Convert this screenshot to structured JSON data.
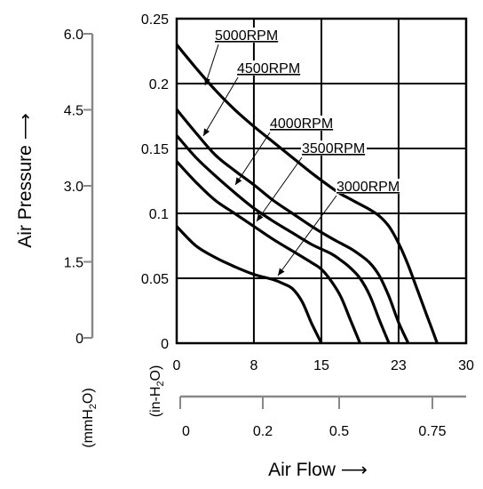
{
  "chart_data": {
    "type": "line",
    "title": "",
    "xlabel": "Air Flow ⟶",
    "ylabel": "Air Pressure ⟶",
    "xunit_primary": "(in-H2O)",
    "yunit_secondary": "(mmH2O)",
    "xlim": [
      0,
      30
    ],
    "ylim": [
      0,
      0.25
    ],
    "x_ticks": [
      0,
      8,
      15,
      23,
      30
    ],
    "y_ticks": [
      0,
      0.05,
      0.1,
      0.15,
      0.2,
      0.25
    ],
    "y_tick_labels": [
      "0",
      "0.05",
      "0.1",
      "0.15",
      "0.2",
      "0.25"
    ],
    "y2_ticks": [
      0,
      1.5,
      3.0,
      4.5,
      6.0
    ],
    "y2_tick_labels": [
      "0",
      "1.5",
      "3.0",
      "4.5",
      "6.0"
    ],
    "x2_ticks": [
      0,
      0.2,
      0.5,
      0.75
    ],
    "x2_tick_labels": [
      "0",
      "0.2",
      "0.5",
      "0.75"
    ],
    "grid": true,
    "series": [
      {
        "name": "5000RPM",
        "x": [
          0,
          2,
          4,
          6,
          8,
          10,
          12,
          14,
          16,
          17,
          18,
          19,
          20,
          21,
          22,
          23,
          24,
          25,
          26,
          27
        ],
        "y": [
          0.23,
          0.212,
          0.195,
          0.18,
          0.167,
          0.155,
          0.143,
          0.131,
          0.12,
          0.115,
          0.111,
          0.107,
          0.103,
          0.098,
          0.09,
          0.077,
          0.06,
          0.04,
          0.02,
          0.0
        ]
      },
      {
        "name": "4500RPM",
        "x": [
          0,
          2,
          4,
          6,
          8,
          10,
          12,
          14,
          16,
          17,
          18,
          19,
          20,
          21,
          22,
          23,
          24
        ],
        "y": [
          0.18,
          0.162,
          0.145,
          0.133,
          0.122,
          0.11,
          0.1,
          0.09,
          0.081,
          0.077,
          0.073,
          0.068,
          0.062,
          0.052,
          0.036,
          0.016,
          0.0
        ]
      },
      {
        "name": "4000RPM",
        "x": [
          0,
          2,
          4,
          6,
          8,
          10,
          12,
          14,
          16,
          17,
          18,
          19,
          20,
          21,
          22
        ],
        "y": [
          0.16,
          0.143,
          0.129,
          0.116,
          0.104,
          0.094,
          0.085,
          0.076,
          0.069,
          0.064,
          0.058,
          0.05,
          0.037,
          0.018,
          0.0
        ]
      },
      {
        "name": "3500RPM",
        "x": [
          0,
          2,
          4,
          6,
          8,
          10,
          12,
          14,
          15,
          16,
          17,
          18,
          19
        ],
        "y": [
          0.14,
          0.124,
          0.11,
          0.1,
          0.09,
          0.08,
          0.071,
          0.062,
          0.057,
          0.048,
          0.036,
          0.018,
          0.0
        ]
      },
      {
        "name": "3000RPM",
        "x": [
          0,
          2,
          4,
          6,
          8,
          10,
          11,
          12,
          13,
          14,
          15
        ],
        "y": [
          0.09,
          0.075,
          0.066,
          0.059,
          0.053,
          0.049,
          0.046,
          0.042,
          0.032,
          0.015,
          0.0
        ]
      }
    ]
  },
  "colors": {
    "line": "#000000",
    "grid": "#000000",
    "secondary_axis": "#888888"
  }
}
